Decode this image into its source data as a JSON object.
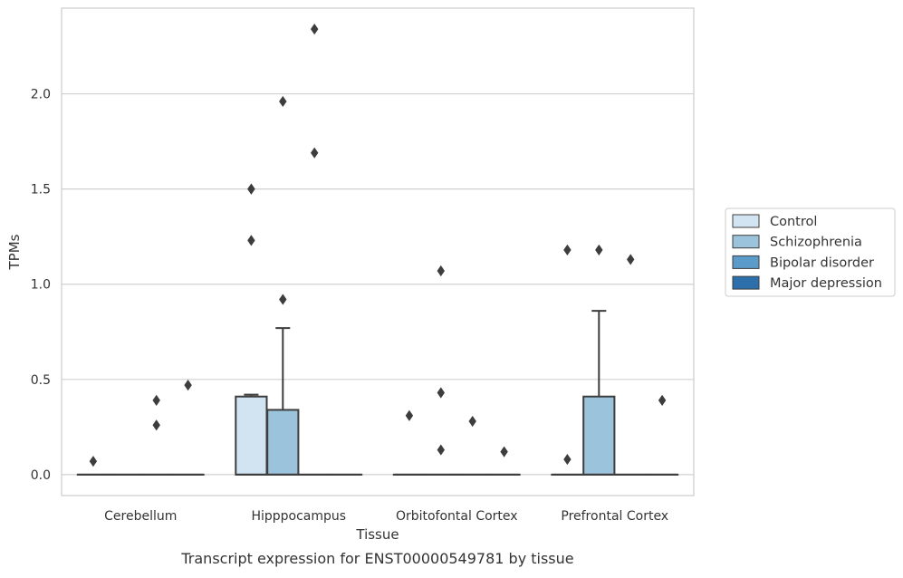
{
  "chart_data": {
    "type": "box",
    "xlabel": "Tissue",
    "ylabel": "TPMs",
    "caption": "Transcript expression for ENST00000549781 by tissue",
    "categories": [
      "Cerebellum",
      "Hipppocampus",
      "Orbitofontal Cortex",
      "Prefrontal Cortex"
    ],
    "ylim": [
      -0.11,
      2.45
    ],
    "yticks": [
      0.0,
      0.5,
      1.0,
      1.5,
      2.0
    ],
    "ytick_labels": [
      "0.0",
      "0.5",
      "1.0",
      "1.5",
      "2.0"
    ],
    "grid": "horizontal",
    "legend_position": "right",
    "series": [
      {
        "name": "Control",
        "color": "#d2e3f2",
        "boxes": [
          {
            "q1": 0,
            "median": 0,
            "q3": 0,
            "whisker_low": 0,
            "whisker_high": 0,
            "outliers": [
              0.07
            ]
          },
          {
            "q1": 0,
            "median": 0,
            "q3": 0.41,
            "whisker_low": 0,
            "whisker_high": 0.42,
            "outliers": [
              1.23,
              1.5,
              1.5
            ]
          },
          {
            "q1": 0,
            "median": 0,
            "q3": 0,
            "whisker_low": 0,
            "whisker_high": 0,
            "outliers": [
              0.31
            ]
          },
          {
            "q1": 0,
            "median": 0,
            "q3": 0,
            "whisker_low": 0,
            "whisker_high": 0,
            "outliers": [
              0.08,
              1.18
            ]
          }
        ]
      },
      {
        "name": "Schizophrenia",
        "color": "#9cc3dc",
        "boxes": [
          {
            "q1": 0,
            "median": 0,
            "q3": 0,
            "whisker_low": 0,
            "whisker_high": 0,
            "outliers": []
          },
          {
            "q1": 0,
            "median": 0,
            "q3": 0.34,
            "whisker_low": 0,
            "whisker_high": 0.77,
            "outliers": [
              0.92,
              1.96
            ]
          },
          {
            "q1": 0,
            "median": 0,
            "q3": 0,
            "whisker_low": 0,
            "whisker_high": 0,
            "outliers": [
              0.13,
              0.43,
              1.07
            ]
          },
          {
            "q1": 0,
            "median": 0,
            "q3": 0.41,
            "whisker_low": 0,
            "whisker_high": 0.86,
            "outliers": [
              1.18
            ]
          }
        ]
      },
      {
        "name": "Bipolar disorder",
        "color": "#5b9bc9",
        "boxes": [
          {
            "q1": 0,
            "median": 0,
            "q3": 0,
            "whisker_low": 0,
            "whisker_high": 0,
            "outliers": [
              0.26,
              0.39
            ]
          },
          {
            "q1": 0,
            "median": 0,
            "q3": 0,
            "whisker_low": 0,
            "whisker_high": 0,
            "outliers": [
              1.69,
              2.34
            ]
          },
          {
            "q1": 0,
            "median": 0,
            "q3": 0,
            "whisker_low": 0,
            "whisker_high": 0,
            "outliers": [
              0.28
            ]
          },
          {
            "q1": 0,
            "median": 0,
            "q3": 0,
            "whisker_low": 0,
            "whisker_high": 0,
            "outliers": [
              1.13
            ]
          }
        ]
      },
      {
        "name": "Major depression",
        "color": "#2c6fab",
        "boxes": [
          {
            "q1": 0,
            "median": 0,
            "q3": 0,
            "whisker_low": 0,
            "whisker_high": 0,
            "outliers": [
              0.47
            ]
          },
          {
            "q1": 0,
            "median": 0,
            "q3": 0,
            "whisker_low": 0,
            "whisker_high": 0,
            "outliers": []
          },
          {
            "q1": 0,
            "median": 0,
            "q3": 0,
            "whisker_low": 0,
            "whisker_high": 0,
            "outliers": [
              0.12
            ]
          },
          {
            "q1": 0,
            "median": 0,
            "q3": 0,
            "whisker_low": 0,
            "whisker_high": 0,
            "outliers": [
              0.39
            ]
          }
        ]
      }
    ]
  }
}
